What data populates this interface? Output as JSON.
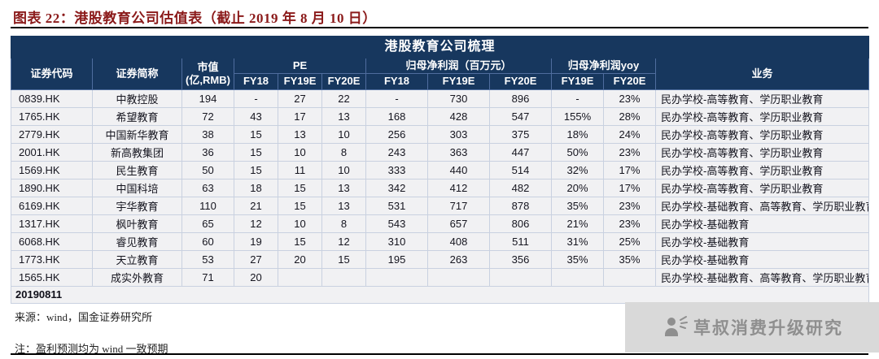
{
  "page": {
    "figure_title": "图表 22：港股教育公司估值表（截止 2019 年 8 月 10 日）",
    "source_note": "来源：wind，国金证券研究所",
    "footnote": "注：盈利预测均为 wind 一致预期",
    "watermark": "草叔消费升级研究"
  },
  "colors": {
    "header_bg": "#17375E",
    "figure_title_color": "#8B1A1A",
    "row_bg": "#F1F1F3",
    "watermark_bg": "#D9D9D9"
  },
  "table": {
    "title": "港股教育公司梳理",
    "headers": {
      "code": "证券代码",
      "name": "证券简称",
      "mktcap_line1": "市值",
      "mktcap_line2": "(亿,RMB)",
      "pe_group": "PE",
      "profit_group": "归母净利润（百万元）",
      "yoy_group": "归母净利润yoy",
      "business": "业务"
    },
    "subheaders": [
      "FY18",
      "FY19E",
      "FY20E",
      "FY18",
      "FY19E",
      "FY20E",
      "FY19E",
      "FY20E"
    ],
    "column_keys": [
      "code",
      "name",
      "mktcap",
      "pe-fy18",
      "pe-fy19e",
      "pe-fy20e",
      "np-fy18",
      "np-fy19e",
      "np-fy20e",
      "yoy-fy19e",
      "yoy-fy20e",
      "business"
    ],
    "rows": [
      [
        "0839.HK",
        "中教控股",
        "194",
        "-",
        "27",
        "22",
        "-",
        "730",
        "896",
        "-",
        "23%",
        "民办学校-高等教育、学历职业教育"
      ],
      [
        "1765.HK",
        "希望教育",
        "72",
        "43",
        "17",
        "13",
        "168",
        "428",
        "547",
        "155%",
        "28%",
        "民办学校-高等教育、学历职业教育"
      ],
      [
        "2779.HK",
        "中国新华教育",
        "38",
        "15",
        "13",
        "10",
        "256",
        "303",
        "375",
        "18%",
        "24%",
        "民办学校-高等教育、学历职业教育"
      ],
      [
        "2001.HK",
        "新高教集团",
        "36",
        "15",
        "10",
        "8",
        "243",
        "363",
        "447",
        "50%",
        "23%",
        "民办学校-高等教育、学历职业教育"
      ],
      [
        "1569.HK",
        "民生教育",
        "50",
        "15",
        "11",
        "10",
        "333",
        "440",
        "514",
        "32%",
        "17%",
        "民办学校-高等教育、学历职业教育"
      ],
      [
        "1890.HK",
        "中国科培",
        "63",
        "18",
        "15",
        "13",
        "342",
        "412",
        "482",
        "20%",
        "17%",
        "民办学校-高等教育、学历职业教育"
      ],
      [
        "6169.HK",
        "宇华教育",
        "110",
        "21",
        "15",
        "13",
        "531",
        "717",
        "878",
        "35%",
        "23%",
        "民办学校-基础教育、高等教育、学历职业教育"
      ],
      [
        "1317.HK",
        "枫叶教育",
        "65",
        "12",
        "10",
        "8",
        "543",
        "657",
        "806",
        "21%",
        "23%",
        "民办学校-基础教育"
      ],
      [
        "6068.HK",
        "睿见教育",
        "60",
        "19",
        "15",
        "12",
        "310",
        "408",
        "511",
        "31%",
        "25%",
        "民办学校-基础教育"
      ],
      [
        "1773.HK",
        "天立教育",
        "53",
        "27",
        "20",
        "15",
        "195",
        "263",
        "356",
        "35%",
        "35%",
        "民办学校-基础教育"
      ],
      [
        "1565.HK",
        "成实外教育",
        "71",
        "20",
        "",
        "",
        "",
        "",
        "",
        "",
        "",
        "民办学校-基础教育、高等教育、学历职业教育"
      ]
    ],
    "footer_row": "20190811"
  }
}
